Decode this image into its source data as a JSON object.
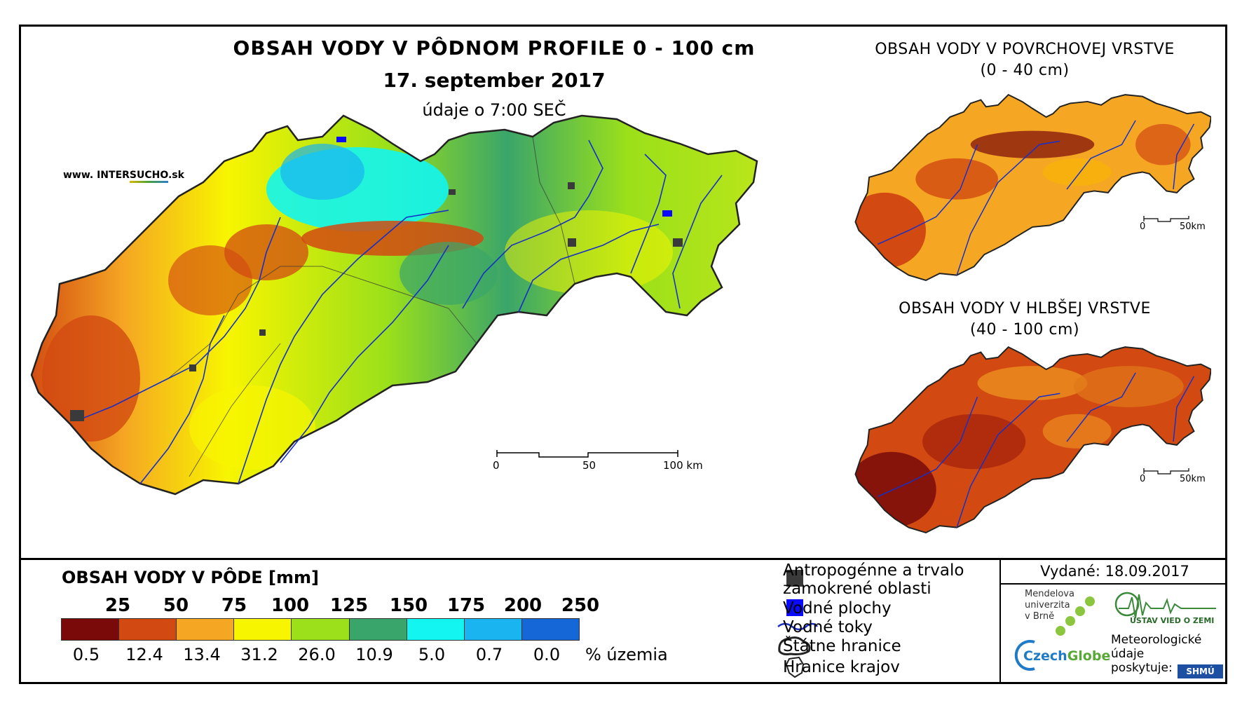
{
  "main": {
    "title": "OBSAH VODY V PÔDNOM PROFILE 0 - 100 cm",
    "date": "17. september 2017",
    "time": "údaje o 7:00 SEČ"
  },
  "brand": {
    "prefix": "www. INTER",
    "accent": "SUCHO",
    "suffix": ".sk"
  },
  "scale_main": {
    "labels": [
      "0",
      "50",
      "100 km"
    ]
  },
  "inset_surface": {
    "title": "OBSAH VODY V POVRCHOVEJ VRSTVE",
    "subtitle": "(0 - 40 cm)",
    "scale": [
      "0",
      "50km"
    ]
  },
  "inset_deep": {
    "title": "OBSAH VODY V HLBŠEJ VRSTVE",
    "subtitle": "(40 - 100 cm)",
    "scale": [
      "0",
      "50km"
    ]
  },
  "legend": {
    "title": "OBSAH VODY V PÔDE [mm]",
    "ticks": [
      "25",
      "50",
      "75",
      "100",
      "125",
      "150",
      "175",
      "200",
      "250"
    ],
    "colors": [
      "#7a0a0a",
      "#d24a12",
      "#f5a623",
      "#f8f500",
      "#9be01a",
      "#3aa56a",
      "#12f5f0",
      "#1ab4f0",
      "#1566d6"
    ],
    "percentages": [
      "0.5",
      "12.4",
      "13.4",
      "31.2",
      "26.0",
      "10.9",
      "5.0",
      "0.7",
      "0.0"
    ],
    "percent_unit": "% územia"
  },
  "symbols": {
    "anthropogenic_line1": "Antropogénne a trvalo",
    "anthropogenic_line2": "zamokrené oblasti",
    "water_bodies": "Vodné plochy",
    "rivers": "Vodné toky",
    "state_border": "Štátne hranice",
    "region_border": "Hranice krajov"
  },
  "issued": "Vydané: 18.09.2017",
  "partners": {
    "mendel": [
      "Mendelova",
      "univerzita",
      "v Brně"
    ],
    "czechglobe_a": "Czech",
    "czechglobe_b": "Globe",
    "uvz": "ÚSTAV VIED O ZEMI",
    "met": [
      "Meteorologické",
      "údaje",
      "poskytuje:"
    ],
    "shmu": "SHMÚ"
  },
  "colors": {
    "river": "#1530c8",
    "border": "#222222",
    "water": "#0a0aff",
    "urban": "#3a3a3a"
  }
}
